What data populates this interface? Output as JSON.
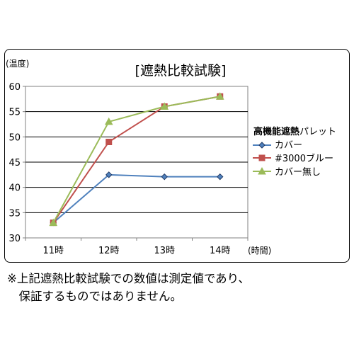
{
  "chart_data": {
    "type": "line",
    "title": "[遮熱比較試験]",
    "ylabel": "(温度)",
    "xlabel": "(時間)",
    "categories": [
      "11時",
      "12時",
      "13時",
      "14時"
    ],
    "ylim": [
      30,
      60
    ],
    "yticks": [
      30,
      35,
      40,
      45,
      50,
      55,
      60
    ],
    "grid": true,
    "legend_position": "right",
    "legend_title_bold": "高機能遮熱",
    "series": [
      {
        "name": "高機能遮熱パレットカバー",
        "name_line1": "パレット",
        "name_line2": "カバー",
        "color": "#4F81BD",
        "marker": "diamond",
        "values": [
          33,
          42.5,
          42.1,
          42.1
        ]
      },
      {
        "name": "#3000ブルー",
        "color": "#C0504D",
        "marker": "square",
        "values": [
          33,
          49,
          56,
          58
        ]
      },
      {
        "name": "カバー無し",
        "color": "#9BBB59",
        "marker": "triangle",
        "values": [
          33,
          53,
          56,
          58
        ]
      }
    ]
  },
  "notes": {
    "line1": "※上記遮熱比較試験での数値は測定値であり、",
    "line2": "　保証するものではありません。"
  }
}
